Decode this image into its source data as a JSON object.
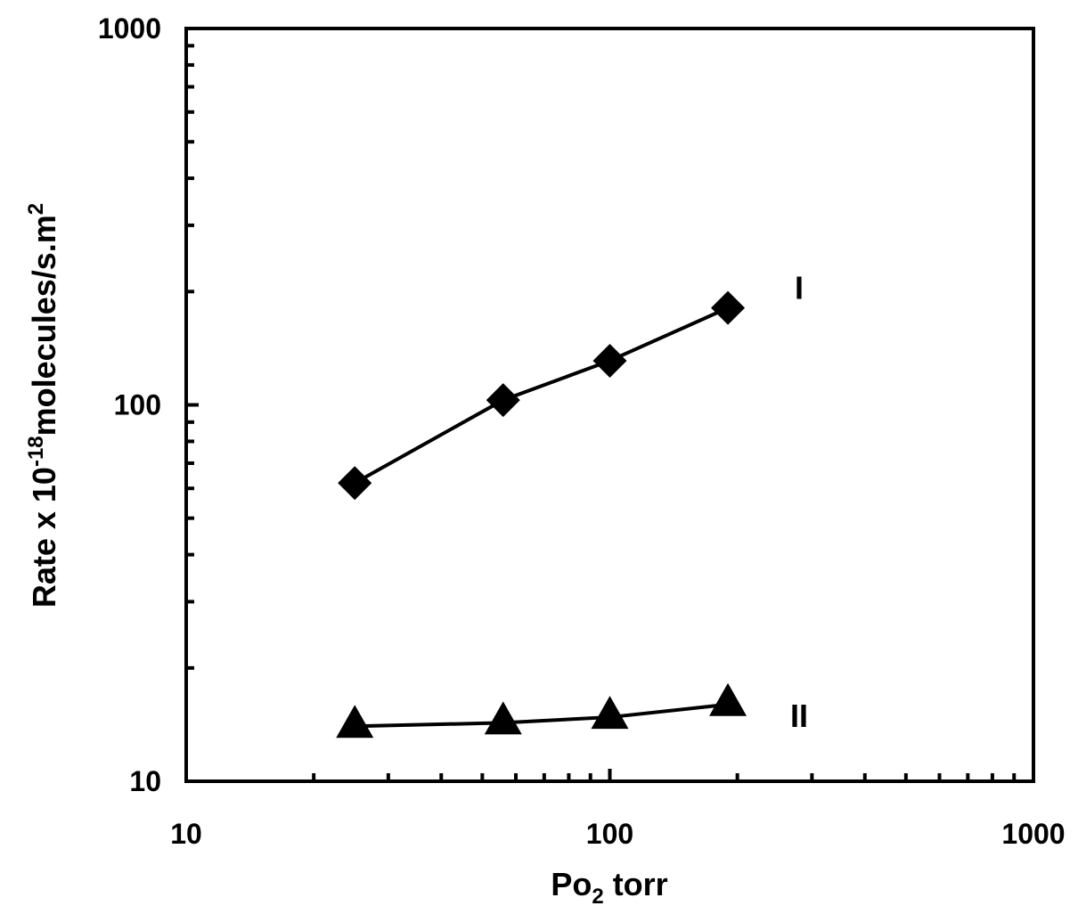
{
  "chart_data": {
    "type": "line",
    "x_label": [
      "Po",
      "2",
      "torr"
    ],
    "y_label": [
      "Rate x 10",
      "-18",
      "molecules/s.m",
      "2"
    ],
    "log_x": true,
    "log_y": true,
    "xlim": [
      10,
      1000
    ],
    "ylim": [
      10,
      1000
    ],
    "xticks": [
      10,
      100,
      1000
    ],
    "yticks": [
      10,
      100,
      1000
    ],
    "x_minor_ticks": [
      20,
      30,
      40,
      50,
      60,
      70,
      80,
      90,
      200,
      300,
      400,
      500,
      600,
      700,
      800,
      900
    ],
    "y_minor_ticks": [
      20,
      30,
      40,
      50,
      60,
      70,
      80,
      90,
      200,
      300,
      400,
      500,
      600,
      700,
      800,
      900
    ],
    "series": [
      {
        "name": "I",
        "color": "#000000",
        "marker": "diamond",
        "x": [
          25,
          56,
          100,
          190
        ],
        "values": [
          62,
          103,
          131,
          181
        ]
      },
      {
        "name": "II",
        "color": "#000000",
        "marker": "triangle",
        "x": [
          25,
          56,
          100,
          190
        ],
        "values": [
          14,
          14.3,
          14.8,
          16
        ]
      }
    ]
  }
}
